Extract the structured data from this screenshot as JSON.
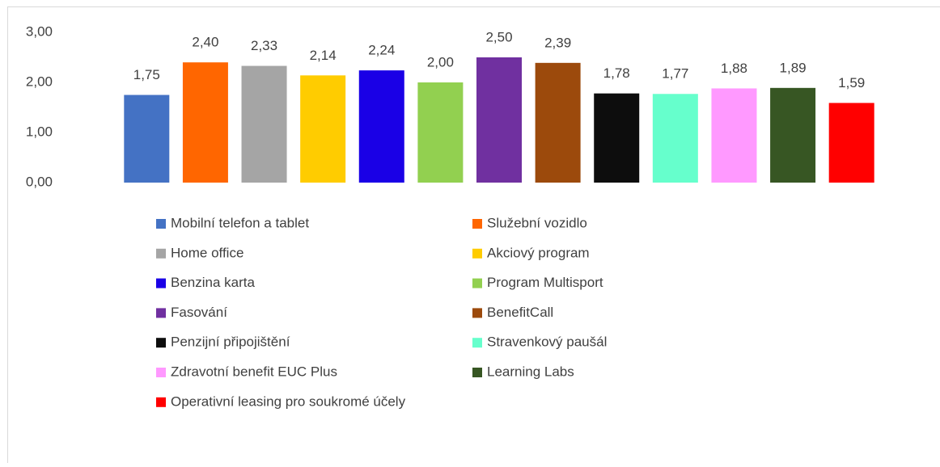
{
  "chart_data": {
    "type": "bar",
    "categories": [
      "Mobilní telefon a tablet",
      "Služební vozidlo",
      "Home office",
      "Akciový program",
      "Benzina karta",
      "Program Multisport",
      "Fasování",
      "BenefitCall",
      "Penzijní připojištění",
      "Stravenkový paušál",
      "Zdravotní benefit EUC Plus",
      "Learning Labs",
      "Operativní leasing pro soukromé účely"
    ],
    "values": [
      1.75,
      2.4,
      2.33,
      2.14,
      2.24,
      2.0,
      2.5,
      2.39,
      1.78,
      1.77,
      1.88,
      1.89,
      1.59
    ],
    "value_labels": [
      "1,75",
      "2,40",
      "2,33",
      "2,14",
      "2,24",
      "2,00",
      "2,50",
      "2,39",
      "1,78",
      "1,77",
      "1,88",
      "1,89",
      "1,59"
    ],
    "colors": [
      "#4472c4",
      "#ff6600",
      "#a5a5a5",
      "#ffcc00",
      "#1a00e6",
      "#92d050",
      "#7030a0",
      "#9c4a0c",
      "#0d0d0d",
      "#66ffcc",
      "#ff99ff",
      "#375623",
      "#ff0000"
    ],
    "ylim": [
      0,
      3
    ],
    "yticks": [
      {
        "value": 0,
        "label": "0,00"
      },
      {
        "value": 1,
        "label": "1,00"
      },
      {
        "value": 2,
        "label": "2,00"
      },
      {
        "value": 3,
        "label": "3,00"
      }
    ],
    "grid": false,
    "legend": "bottom"
  }
}
